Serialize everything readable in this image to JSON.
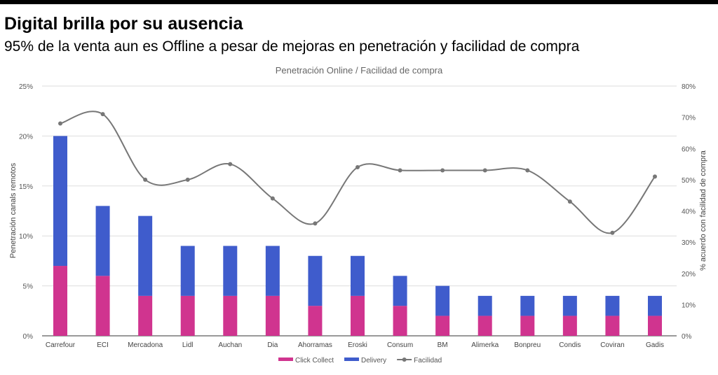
{
  "header": {
    "title": "Digital brilla por su ausencia",
    "subtitle": "95% de la venta aun es Offline a pesar de mejoras en penetración y facilidad de compra"
  },
  "chart_data": {
    "type": "bar",
    "stacked": true,
    "title": "Penetración Online / Facilidad de compra",
    "ylabel": "Penetración canals remotos",
    "y2label": "% acuerdo con facilidad de compra",
    "ylim": [
      0,
      25
    ],
    "y2lim": [
      0,
      80
    ],
    "yticks": [
      "0%",
      "5%",
      "10%",
      "15%",
      "20%",
      "25%"
    ],
    "y2ticks": [
      "0%",
      "10%",
      "20%",
      "30%",
      "40%",
      "50%",
      "60%",
      "70%",
      "80%"
    ],
    "grid": true,
    "legend_position": "bottom",
    "categories": [
      "Carrefour",
      "ECI",
      "Mercadona",
      "Lidl",
      "Auchan",
      "Dia",
      "Ahorramas",
      "Eroski",
      "Consum",
      "BM",
      "Alimerka",
      "Bonpreu",
      "Condis",
      "Coviran",
      "Gadis"
    ],
    "series": [
      {
        "name": "Click Collect",
        "type": "bar",
        "axis": "left",
        "color": "#d0348f",
        "values": [
          7,
          6,
          4,
          4,
          4,
          4,
          3,
          4,
          3,
          2,
          2,
          2,
          2,
          2,
          2
        ]
      },
      {
        "name": "Delivery",
        "type": "bar",
        "axis": "left",
        "color": "#3f5ccc",
        "values": [
          13,
          7,
          8,
          5,
          5,
          5,
          5,
          4,
          3,
          3,
          2,
          2,
          2,
          2,
          2
        ]
      },
      {
        "name": "Facilidad",
        "type": "line",
        "axis": "right",
        "color": "#777777",
        "values": [
          68,
          71,
          50,
          50,
          55,
          44,
          36,
          54,
          53,
          53,
          53,
          53,
          43,
          33,
          51
        ]
      }
    ]
  }
}
